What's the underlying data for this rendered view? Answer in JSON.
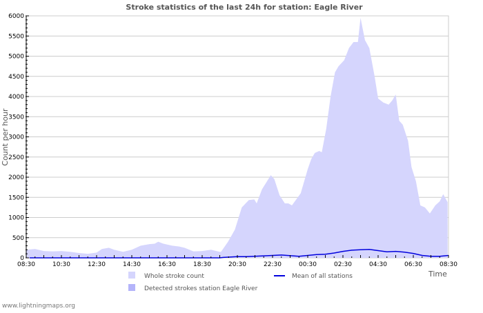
{
  "chart_data": {
    "type": "area",
    "title": "Stroke statistics of the last 24h for station: Eagle River",
    "xlabel": "Time",
    "ylabel": "Count per hour",
    "ylim": [
      0,
      6000
    ],
    "yticks": [
      "0",
      "500",
      "1000",
      "1500",
      "2000",
      "2500",
      "3000",
      "3500",
      "4000",
      "4500",
      "5000",
      "5500",
      "6000"
    ],
    "xticks": [
      "08:30",
      "10:30",
      "12:30",
      "14:30",
      "16:30",
      "18:30",
      "20:30",
      "22:30",
      "00:30",
      "02:30",
      "04:30",
      "06:30",
      "08:30"
    ],
    "x_unit": "hours since 08:30",
    "xlim": [
      0,
      24
    ],
    "grid": true,
    "legend_position": "bottom",
    "series": [
      {
        "name": "Whole stroke count",
        "color": "#d5d5fd",
        "type": "area",
        "x": [
          0,
          0.5,
          1,
          1.5,
          2,
          2.5,
          3,
          3.5,
          4,
          4.3,
          4.7,
          5,
          5.5,
          6,
          6.5,
          7,
          7.3,
          7.5,
          7.8,
          8.3,
          8.7,
          9,
          9.5,
          10,
          10.5,
          11,
          11.07,
          11.47,
          11.86,
          12.25,
          12.65,
          12.96,
          13.1,
          13.4,
          13.9,
          14.1,
          14.4,
          14.7,
          14.9,
          15.1,
          15.6,
          16,
          16.2,
          16.4,
          16.65,
          16.8,
          17.05,
          17.3,
          17.55,
          17.75,
          18.07,
          18.34,
          18.6,
          18.85,
          19.0,
          19.25,
          19.5,
          19.8,
          20.0,
          20.3,
          20.6,
          20.8,
          21.0,
          21.2,
          21.4,
          21.7,
          21.9,
          22.15,
          22.4,
          22.66,
          22.94,
          23.25,
          23.5,
          23.7,
          23.95
        ],
        "values": [
          200,
          220,
          170,
          160,
          170,
          150,
          120,
          100,
          130,
          220,
          250,
          200,
          150,
          200,
          300,
          340,
          350,
          400,
          350,
          300,
          280,
          250,
          160,
          170,
          200,
          150,
          150,
          400,
          700,
          1250,
          1430,
          1450,
          1350,
          1700,
          2050,
          1950,
          1550,
          1350,
          1350,
          1300,
          1600,
          2200,
          2450,
          2600,
          2650,
          2620,
          3200,
          4000,
          4600,
          4750,
          4900,
          5200,
          5350,
          5350,
          5950,
          5400,
          5200,
          4500,
          3950,
          3850,
          3800,
          3900,
          4050,
          3400,
          3300,
          2900,
          2250,
          1900,
          1300,
          1250,
          1100,
          1300,
          1400,
          1580,
          1380
        ]
      },
      {
        "name": "Detected strokes station Eagle River",
        "color": "#b4b4fa",
        "type": "area",
        "x": [],
        "values": []
      },
      {
        "name": "Mean of all stations",
        "color": "#0000dd",
        "type": "line",
        "x": [
          0.2,
          0.7,
          4.2,
          5.2,
          7.6,
          11,
          11.2,
          12,
          12.5,
          13.5,
          14.5,
          15.5,
          16,
          16.5,
          17,
          17.5,
          18,
          18.5,
          19,
          19.5,
          20,
          20.5,
          21,
          21.5,
          22,
          22.5,
          23,
          23.5,
          24
        ],
        "values": [
          0,
          0,
          0,
          0,
          0,
          0,
          10,
          30,
          30,
          50,
          70,
          40,
          60,
          80,
          90,
          120,
          160,
          190,
          200,
          210,
          180,
          150,
          160,
          140,
          110,
          60,
          40,
          40,
          60
        ]
      }
    ]
  },
  "footer": "www.lightningmaps.org"
}
